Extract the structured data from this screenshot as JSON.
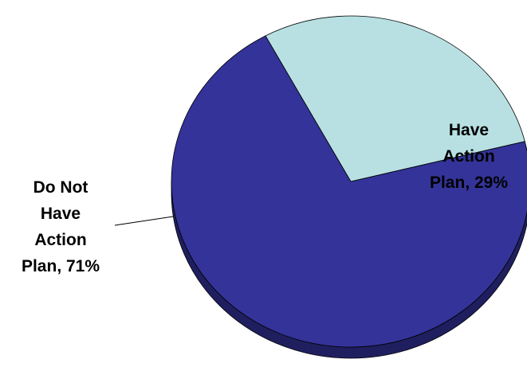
{
  "chart_data": {
    "type": "pie",
    "style": "3d-tilted",
    "title": "",
    "categories": [
      "Have Action Plan",
      "Do Not Have Action Plan"
    ],
    "values": [
      29,
      71
    ],
    "unit": "%",
    "labels": [
      [
        "Have",
        "Action",
        "Plan, 29%"
      ],
      [
        "Do Not",
        "Have",
        "Action",
        "Plan, 71%"
      ]
    ],
    "colors": [
      "#b8e0e2",
      "#333399"
    ],
    "side_colors": [
      "#5f7777",
      "#1f1f60"
    ],
    "start_angle_deg": 14,
    "legend": "none",
    "data_labels": "outside-left and inside-right"
  }
}
